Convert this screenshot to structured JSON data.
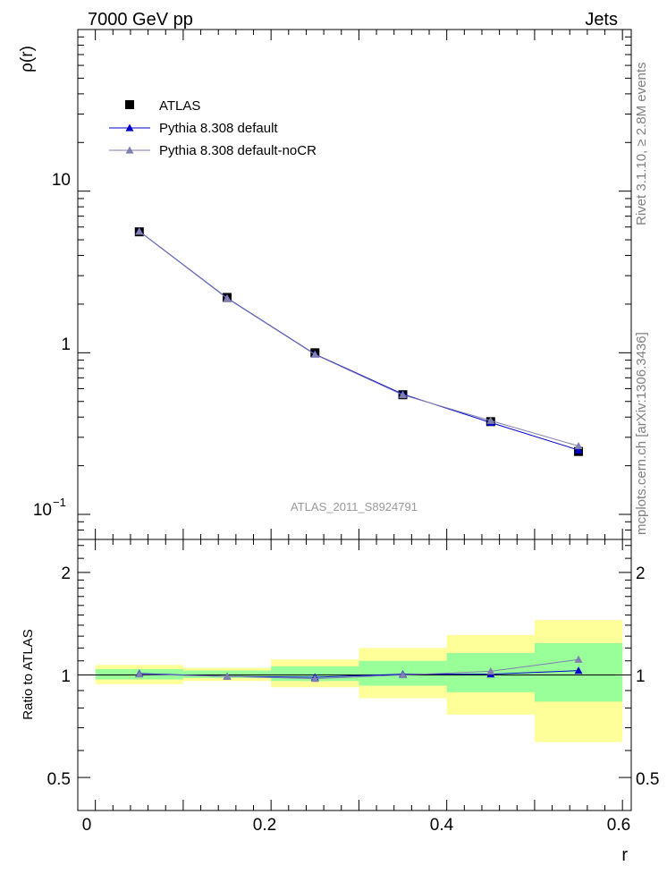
{
  "header": {
    "energy_label": "7000 GeV pp",
    "process_label": "Jets"
  },
  "side_labels": {
    "rivet": "Rivet 3.1.10, ≥ 2.8M events",
    "mcplots": "mcplots.cern.ch [arXiv:1306.3436]"
  },
  "watermark": "ATLAS_2011_S8924791",
  "colors": {
    "data": "#000000",
    "default": "#0000cc",
    "nocr": "#7f7fb2",
    "band_inner": "#99ff99",
    "band_outer": "#ffff99"
  },
  "chart_data": [
    {
      "type": "line",
      "panel": "main",
      "ylabel": "ρ(r)",
      "xlim": [
        -0.02,
        0.61
      ],
      "ylim": [
        0.07,
        100
      ],
      "y_scale": "log",
      "y_ticklabels": [
        "10",
        "1"
      ],
      "y_ticklabel_low": {
        "base": "10",
        "exp": "−1"
      },
      "legend_position": "top-left",
      "legend": [
        "ATLAS",
        "Pythia 8.308 default",
        "Pythia 8.308 default-noCR"
      ],
      "x": [
        0.05,
        0.15,
        0.25,
        0.35,
        0.45,
        0.55
      ],
      "series": [
        {
          "name": "ATLAS",
          "values": [
            5.6,
            2.2,
            1.0,
            0.55,
            0.375,
            0.245
          ]
        },
        {
          "name": "Pythia 8.308 default",
          "values": [
            5.65,
            2.18,
            0.98,
            0.555,
            0.37,
            0.25
          ]
        },
        {
          "name": "Pythia 8.308 default-noCR",
          "values": [
            5.63,
            2.17,
            0.975,
            0.548,
            0.38,
            0.265
          ]
        }
      ]
    },
    {
      "type": "line",
      "panel": "ratio",
      "ylabel": "Ratio to ATLAS",
      "xlabel": "r",
      "xlim": [
        -0.02,
        0.61
      ],
      "ylim": [
        0.4,
        2.5
      ],
      "y_scale": "log",
      "x_ticks": [
        "0",
        "0.2",
        "0.4",
        "0.6"
      ],
      "y_ticks": [
        "2",
        "1",
        "0.5"
      ],
      "bands": [
        {
          "xlo": 0.0,
          "xhi": 0.1,
          "inner": [
            0.97,
            1.04
          ],
          "outer": [
            0.94,
            1.07
          ]
        },
        {
          "xlo": 0.1,
          "xhi": 0.2,
          "inner": [
            0.98,
            1.03
          ],
          "outer": [
            0.96,
            1.05
          ]
        },
        {
          "xlo": 0.2,
          "xhi": 0.3,
          "inner": [
            0.96,
            1.06
          ],
          "outer": [
            0.92,
            1.11
          ]
        },
        {
          "xlo": 0.3,
          "xhi": 0.4,
          "inner": [
            0.93,
            1.1
          ],
          "outer": [
            0.855,
            1.2
          ]
        },
        {
          "xlo": 0.4,
          "xhi": 0.5,
          "inner": [
            0.89,
            1.16
          ],
          "outer": [
            0.765,
            1.31
          ]
        },
        {
          "xlo": 0.5,
          "xhi": 0.6,
          "inner": [
            0.835,
            1.24
          ],
          "outer": [
            0.635,
            1.45
          ]
        }
      ],
      "x": [
        0.05,
        0.15,
        0.25,
        0.35,
        0.45,
        0.55
      ],
      "series": [
        {
          "name": "Pythia 8.308 default",
          "values": [
            1.01,
            0.99,
            0.985,
            1.005,
            1.005,
            1.03
          ]
        },
        {
          "name": "Pythia 8.308 default-noCR",
          "values": [
            1.005,
            0.99,
            0.975,
            1.0,
            1.025,
            1.11
          ]
        }
      ]
    }
  ]
}
